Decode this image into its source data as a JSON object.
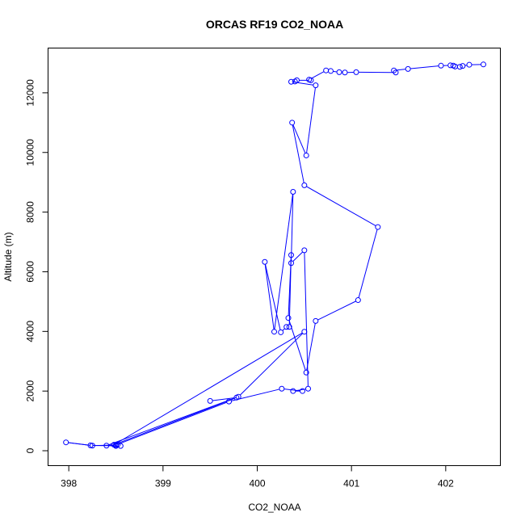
{
  "chart_data": {
    "type": "line",
    "title": "ORCAS RF19 CO2_NOAA",
    "xlabel": "CO2_NOAA",
    "ylabel": "Altitude (m)",
    "xlim": [
      397.78,
      402.58
    ],
    "ylim": [
      -500,
      13500
    ],
    "xticks": [
      398,
      399,
      400,
      401,
      402
    ],
    "yticks": [
      0,
      2000,
      4000,
      6000,
      8000,
      10000,
      12000
    ],
    "grid": false,
    "color": "#0000ff",
    "series": [
      {
        "x": [
          402.4,
          402.25,
          402.18,
          402.15,
          402.1,
          402.08,
          402.05,
          401.95,
          401.6,
          401.45,
          401.47,
          401.05,
          400.93,
          400.87,
          400.78,
          400.73,
          400.55,
          400.57,
          400.42,
          400.4,
          400.36,
          400.62,
          400.52,
          400.37,
          400.5,
          401.28,
          401.07,
          400.62,
          400.52,
          400.33,
          400.36,
          400.34,
          400.31,
          400.25,
          400.08,
          400.18,
          400.38,
          400.36,
          400.5,
          400.54,
          400.38,
          400.48,
          400.26,
          399.7,
          398.5,
          398.25,
          397.97,
          398.23,
          398.55,
          398.5,
          398.52,
          398.4,
          399.8,
          400.5,
          398.48,
          399.78,
          399.5
        ],
        "y": [
          12950,
          12940,
          12900,
          12870,
          12880,
          12910,
          12920,
          12910,
          12800,
          12750,
          12680,
          12690,
          12680,
          12690,
          12730,
          12750,
          12440,
          12420,
          12420,
          12380,
          12370,
          12250,
          9900,
          11000,
          8900,
          7500,
          5050,
          4350,
          2620,
          4450,
          6560,
          4150,
          4150,
          3970,
          6330,
          3990,
          8680,
          6290,
          6720,
          2080,
          2000,
          2000,
          2080,
          1650,
          190,
          170,
          280,
          180,
          160,
          160,
          210,
          170,
          1810,
          3990,
          200,
          1780,
          1670
        ]
      }
    ]
  }
}
